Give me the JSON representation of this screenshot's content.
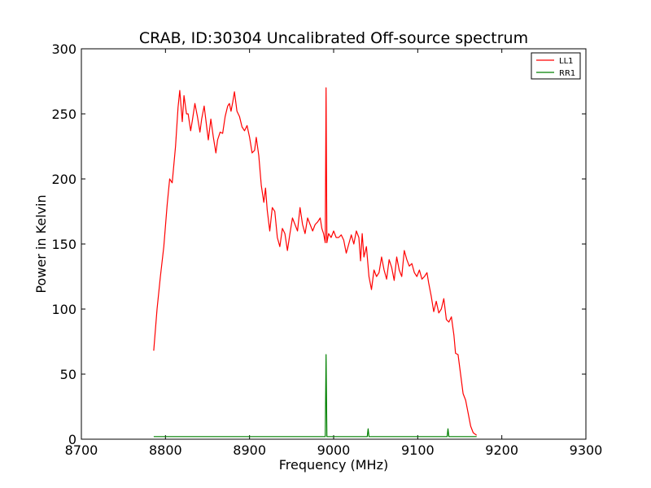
{
  "chart_data": {
    "type": "line",
    "title": "CRAB, ID:30304 Uncalibrated Off-source spectrum",
    "xlabel": "Frequency (MHz)",
    "ylabel": "Power in Kelvin",
    "xlim": [
      8700,
      9300
    ],
    "ylim": [
      0,
      300
    ],
    "x_ticks": [
      "8700",
      "8800",
      "8900",
      "9000",
      "9100",
      "9200",
      "9300"
    ],
    "y_ticks": [
      "0",
      "50",
      "100",
      "150",
      "200",
      "250",
      "300"
    ],
    "grid": false,
    "legend_position": "top-right",
    "series": [
      {
        "name": "LL1",
        "color": "#ff0000",
        "points": [
          [
            8786,
            68
          ],
          [
            8790,
            100
          ],
          [
            8794,
            125
          ],
          [
            8798,
            148
          ],
          [
            8802,
            180
          ],
          [
            8805,
            200
          ],
          [
            8808,
            197
          ],
          [
            8812,
            225
          ],
          [
            8815,
            255
          ],
          [
            8817,
            268
          ],
          [
            8820,
            244
          ],
          [
            8822,
            264
          ],
          [
            8825,
            250
          ],
          [
            8827,
            250
          ],
          [
            8830,
            237
          ],
          [
            8832,
            245
          ],
          [
            8835,
            258
          ],
          [
            8838,
            248
          ],
          [
            8841,
            236
          ],
          [
            8843,
            246
          ],
          [
            8846,
            256
          ],
          [
            8849,
            240
          ],
          [
            8851,
            230
          ],
          [
            8854,
            246
          ],
          [
            8857,
            232
          ],
          [
            8860,
            220
          ],
          [
            8862,
            230
          ],
          [
            8865,
            236
          ],
          [
            8868,
            235
          ],
          [
            8871,
            248
          ],
          [
            8874,
            256
          ],
          [
            8876,
            258
          ],
          [
            8878,
            252
          ],
          [
            8880,
            259
          ],
          [
            8882,
            267
          ],
          [
            8885,
            252
          ],
          [
            8888,
            248
          ],
          [
            8891,
            240
          ],
          [
            8894,
            237
          ],
          [
            8897,
            241
          ],
          [
            8900,
            232
          ],
          [
            8903,
            220
          ],
          [
            8906,
            222
          ],
          [
            8908,
            232
          ],
          [
            8911,
            218
          ],
          [
            8914,
            195
          ],
          [
            8917,
            182
          ],
          [
            8919,
            193
          ],
          [
            8921,
            176
          ],
          [
            8924,
            160
          ],
          [
            8927,
            178
          ],
          [
            8930,
            175
          ],
          [
            8933,
            155
          ],
          [
            8936,
            148
          ],
          [
            8939,
            162
          ],
          [
            8942,
            158
          ],
          [
            8945,
            145
          ],
          [
            8948,
            158
          ],
          [
            8951,
            170
          ],
          [
            8954,
            165
          ],
          [
            8957,
            160
          ],
          [
            8960,
            178
          ],
          [
            8963,
            165
          ],
          [
            8966,
            158
          ],
          [
            8969,
            170
          ],
          [
            8972,
            165
          ],
          [
            8975,
            160
          ],
          [
            8978,
            165
          ],
          [
            8981,
            167
          ],
          [
            8984,
            170
          ],
          [
            8986,
            162
          ],
          [
            8988,
            158
          ],
          [
            8990,
            151
          ],
          [
            8991,
            270
          ],
          [
            8992,
            151
          ],
          [
            8994,
            158
          ],
          [
            8997,
            155
          ],
          [
            9000,
            160
          ],
          [
            9003,
            155
          ],
          [
            9006,
            155
          ],
          [
            9009,
            157
          ],
          [
            9012,
            153
          ],
          [
            9015,
            143
          ],
          [
            9018,
            150
          ],
          [
            9021,
            157
          ],
          [
            9024,
            150
          ],
          [
            9027,
            160
          ],
          [
            9030,
            155
          ],
          [
            9032,
            137
          ],
          [
            9034,
            158
          ],
          [
            9036,
            140
          ],
          [
            9039,
            148
          ],
          [
            9042,
            125
          ],
          [
            9045,
            115
          ],
          [
            9048,
            130
          ],
          [
            9051,
            125
          ],
          [
            9054,
            128
          ],
          [
            9057,
            140
          ],
          [
            9060,
            130
          ],
          [
            9063,
            123
          ],
          [
            9066,
            138
          ],
          [
            9069,
            132
          ],
          [
            9072,
            122
          ],
          [
            9075,
            140
          ],
          [
            9078,
            130
          ],
          [
            9081,
            125
          ],
          [
            9084,
            145
          ],
          [
            9087,
            138
          ],
          [
            9090,
            133
          ],
          [
            9093,
            135
          ],
          [
            9096,
            128
          ],
          [
            9099,
            125
          ],
          [
            9102,
            130
          ],
          [
            9105,
            123
          ],
          [
            9108,
            125
          ],
          [
            9111,
            128
          ],
          [
            9113,
            120
          ],
          [
            9116,
            110
          ],
          [
            9119,
            98
          ],
          [
            9122,
            106
          ],
          [
            9125,
            97
          ],
          [
            9128,
            100
          ],
          [
            9131,
            108
          ],
          [
            9134,
            92
          ],
          [
            9137,
            90
          ],
          [
            9140,
            94
          ],
          [
            9143,
            80
          ],
          [
            9145,
            66
          ],
          [
            9148,
            65
          ],
          [
            9151,
            50
          ],
          [
            9154,
            35
          ],
          [
            9157,
            30
          ],
          [
            9160,
            20
          ],
          [
            9163,
            10
          ],
          [
            9166,
            5
          ],
          [
            9170,
            3
          ]
        ]
      },
      {
        "name": "RR1",
        "color": "#008000",
        "points": [
          [
            8786,
            2
          ],
          [
            8830,
            2
          ],
          [
            8870,
            2
          ],
          [
            8900,
            2
          ],
          [
            8950,
            2
          ],
          [
            8990,
            2
          ],
          [
            8991,
            65
          ],
          [
            8992,
            2
          ],
          [
            9030,
            2
          ],
          [
            9040,
            2
          ],
          [
            9041,
            8
          ],
          [
            9042,
            2
          ],
          [
            9100,
            2
          ],
          [
            9135,
            2
          ],
          [
            9136,
            8
          ],
          [
            9137,
            2
          ],
          [
            9170,
            2
          ]
        ]
      }
    ]
  }
}
